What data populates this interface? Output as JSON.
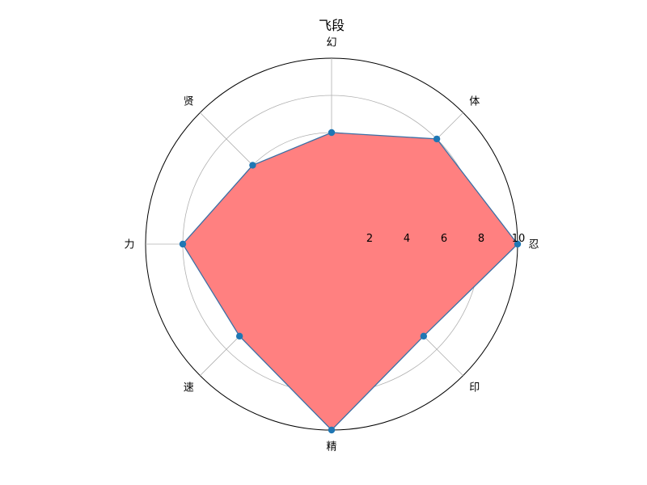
{
  "chart_data": {
    "type": "radar",
    "title": "飞段",
    "categories": [
      "忍",
      "体",
      "幻",
      "贤",
      "力",
      "速",
      "精",
      "印"
    ],
    "series": [
      {
        "values": [
          10,
          8,
          6,
          6,
          8,
          7,
          10,
          7
        ]
      }
    ],
    "rlim": [
      0,
      10
    ],
    "r_ticks": [
      "2",
      "4",
      "6",
      "8",
      "10"
    ],
    "grid": true,
    "fill_color": "#ff8080",
    "line_color": "#3a6fa5",
    "marker_color": "#1f77b4",
    "grid_color": "#b0b0b0",
    "outer_ring_color": "#000000"
  }
}
